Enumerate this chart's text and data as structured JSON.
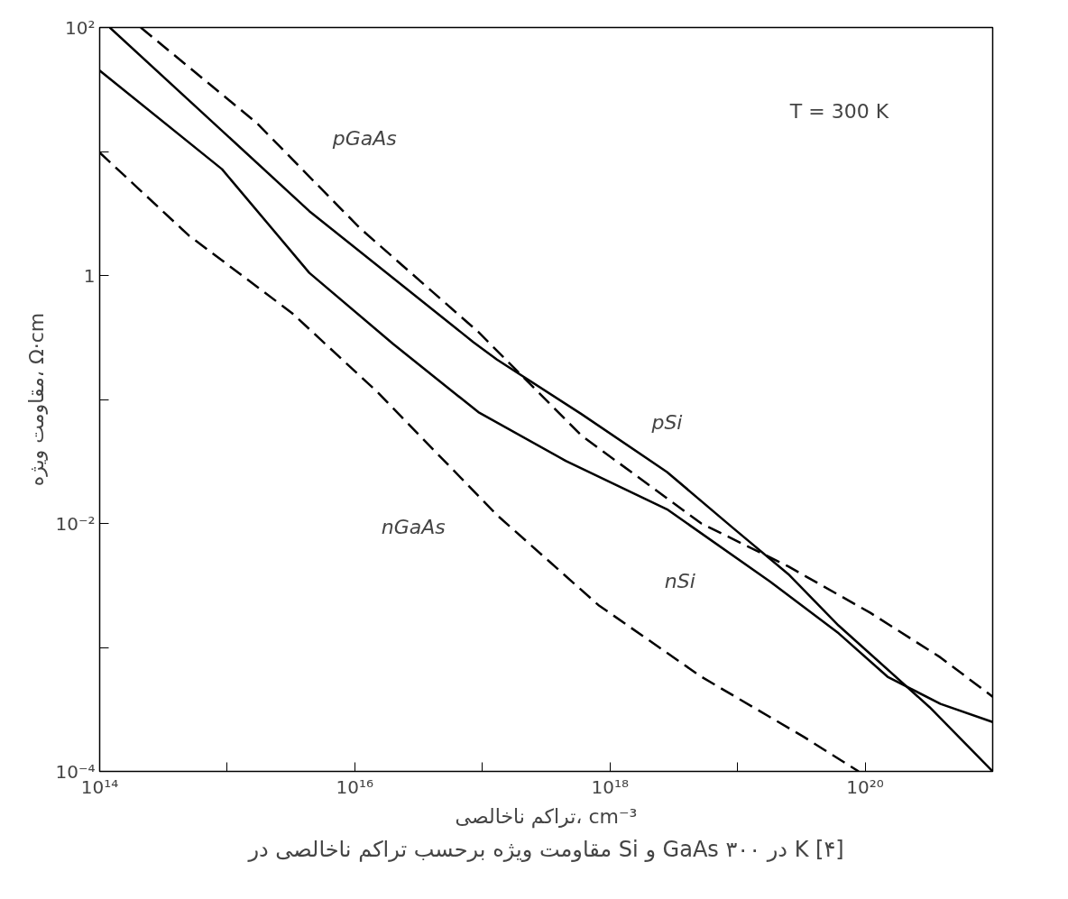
{
  "chart_data": {
    "type": "line",
    "xlabel": "تراکم ناخالصی، cm⁻³",
    "ylabel": "مقاومت ویژه، Ω·cm",
    "log": "xy",
    "xlim": [
      100000000000000.0,
      1e+21
    ],
    "ylim": [
      0.0001,
      100
    ],
    "xticks": [
      {
        "value": 100000000000000.0,
        "label": "10¹⁴"
      },
      {
        "value": 1000000000000000.0,
        "label": null
      },
      {
        "value": 1e+16,
        "label": "10¹⁶"
      },
      {
        "value": 1e+17,
        "label": null
      },
      {
        "value": 1e+18,
        "label": "10¹⁸"
      },
      {
        "value": 1e+19,
        "label": null
      },
      {
        "value": 1e+20,
        "label": "10²⁰"
      }
    ],
    "yticks": [
      {
        "value": 100,
        "label": "10²"
      },
      {
        "value": 10,
        "label": null
      },
      1,
      {
        "value": 0.1,
        "label": null
      },
      {
        "value": 0.01,
        "label": "10⁻²"
      },
      {
        "value": 0.001,
        "label": null
      },
      {
        "value": 0.0001,
        "label": "10⁻⁴"
      }
    ],
    "grid": false,
    "series": [
      {
        "name": "pSi",
        "color": "#000000",
        "line_style": "solid",
        "x": [
          120000000000000.0,
          4400000000000000.0,
          8.5e+16,
          1.3e+17,
          6e+17,
          2.8e+18,
          9.1e+18,
          2.5e+19,
          6.2e+19,
          3.2e+20,
          1e+21
        ],
        "values": [
          100,
          3.3,
          0.29,
          0.21,
          0.076,
          0.026,
          0.0093,
          0.0039,
          0.0015,
          0.00033,
          0.0001
        ]
      },
      {
        "name": "nSi",
        "color": "#000000",
        "line_style": "solid",
        "x": [
          100000000000000.0,
          910000000000000.0,
          4400000000000000.0,
          2e+16,
          9.3e+16,
          4.5e+17,
          2.8e+18,
          1.8e+19,
          6.2e+19,
          1.5e+20,
          3.9e+20,
          1e+21
        ],
        "values": [
          45,
          7.2,
          1.05,
          0.28,
          0.079,
          0.032,
          0.013,
          0.0034,
          0.0013,
          0.00058,
          0.00035,
          0.00025
        ]
      },
      {
        "name": "pGaAs",
        "color": "#000000",
        "line_style": "dashed",
        "x": [
          210000000000000.0,
          1700000000000000.0,
          1.1e+16,
          9.3e+16,
          6e+17,
          5.2e+18,
          2.5e+19,
          1.1e+20,
          3.9e+20,
          1e+21
        ],
        "values": [
          100,
          17,
          2.4,
          0.35,
          0.051,
          0.01,
          0.0045,
          0.0019,
          0.00083,
          0.0004
        ]
      },
      {
        "name": "nGaAs",
        "color": "#000000",
        "line_style": "dashed",
        "x": [
          100000000000000.0,
          500000000000000.0,
          3200000000000000.0,
          1.5e+16,
          1.3e+17,
          8.1e+17,
          5.2e+18,
          3.3e+19,
          8.9e+19
        ],
        "values": [
          9.8,
          2.1,
          0.5,
          0.115,
          0.0117,
          0.0022,
          0.00058,
          0.00019,
          0.0001
        ]
      }
    ],
    "annotations": [
      "T = 300 K",
      "مقاومت ویژه برحسب تراکم ناخالصی در Si و GaAs در ۳۰۰ K [۴]"
    ]
  }
}
